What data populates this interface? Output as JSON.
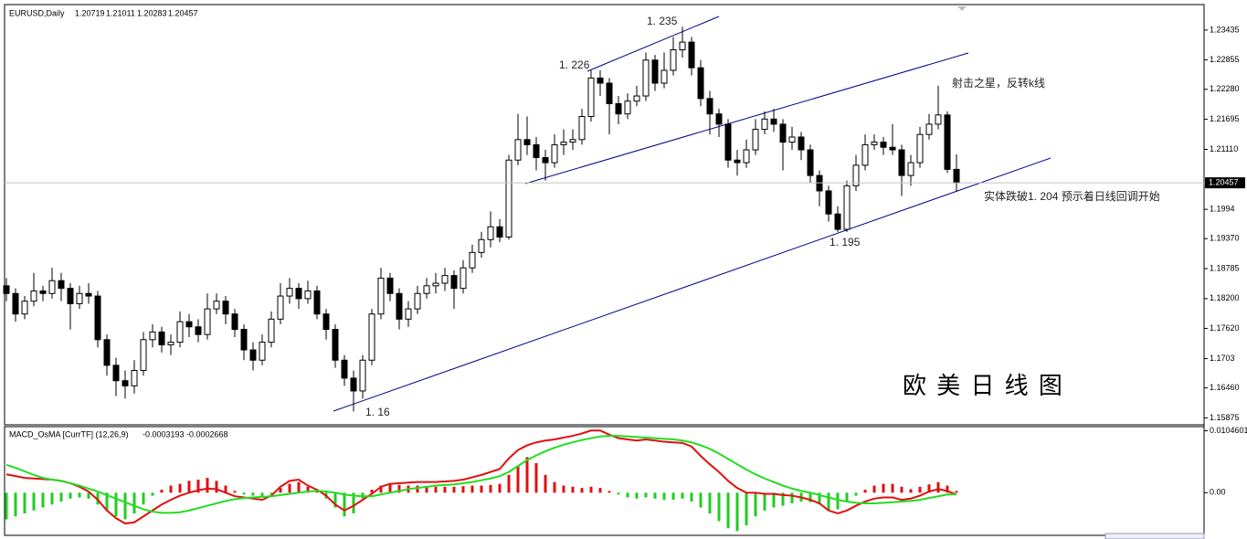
{
  "chart_data": [
    {
      "type": "candlestick",
      "symbol": "EURUSD,Daily",
      "open": [
        1.1845,
        1.183,
        1.179,
        1.1815,
        1.1835,
        1.183,
        1.1855,
        1.184,
        1.181,
        1.183,
        1.1825,
        1.174,
        1.169,
        1.166,
        1.165,
        1.168,
        1.174,
        1.1755,
        1.173,
        1.1735,
        1.1775,
        1.1765,
        1.175,
        1.18,
        1.1815,
        1.179,
        1.176,
        1.172,
        1.17,
        1.1735,
        1.178,
        1.1825,
        1.184,
        1.182,
        1.1835,
        1.179,
        1.176,
        1.17,
        1.1665,
        1.164,
        1.17,
        1.179,
        1.186,
        1.183,
        1.178,
        1.18,
        1.183,
        1.1845,
        1.185,
        1.1865,
        1.184,
        1.188,
        1.191,
        1.1935,
        1.196,
        1.194,
        1.209,
        1.213,
        1.212,
        1.2095,
        1.2085,
        1.212,
        1.2125,
        1.213,
        1.2175,
        1.225,
        1.224,
        1.22,
        1.218,
        1.2205,
        1.2215,
        1.2285,
        1.224,
        1.2265,
        1.2305,
        1.232,
        1.227,
        1.221,
        1.218,
        1.216,
        1.209,
        1.2085,
        1.211,
        1.215,
        1.217,
        1.216,
        1.2125,
        1.2135,
        1.211,
        1.206,
        1.203,
        1.1985,
        1.1955,
        1.204,
        1.208,
        1.212,
        1.2125,
        1.2115,
        1.211,
        1.206,
        1.2085,
        1.214,
        1.216,
        1.2178,
        1.20719
      ],
      "high": [
        1.186,
        1.184,
        1.1825,
        1.187,
        1.1845,
        1.188,
        1.187,
        1.185,
        1.1845,
        1.185,
        1.1835,
        1.175,
        1.1705,
        1.168,
        1.17,
        1.1755,
        1.177,
        1.1765,
        1.175,
        1.1795,
        1.179,
        1.178,
        1.183,
        1.183,
        1.1825,
        1.18,
        1.177,
        1.1735,
        1.175,
        1.1795,
        1.185,
        1.186,
        1.185,
        1.1855,
        1.1845,
        1.18,
        1.177,
        1.171,
        1.168,
        1.171,
        1.18,
        1.188,
        1.187,
        1.184,
        1.1815,
        1.1845,
        1.186,
        1.187,
        1.188,
        1.1875,
        1.1895,
        1.1925,
        1.195,
        1.199,
        1.1975,
        1.21,
        1.218,
        1.2175,
        1.2135,
        1.211,
        1.214,
        1.215,
        1.215,
        1.219,
        1.2265,
        1.2265,
        1.225,
        1.2215,
        1.222,
        1.2235,
        1.23,
        1.2295,
        1.23,
        1.233,
        1.235,
        1.233,
        1.2285,
        1.2225,
        1.219,
        1.217,
        1.211,
        1.213,
        1.217,
        1.2185,
        1.219,
        1.217,
        1.2155,
        1.2145,
        1.212,
        1.207,
        1.204,
        1.2,
        1.205,
        1.21,
        1.214,
        1.214,
        1.2135,
        1.216,
        1.212,
        1.21,
        1.2155,
        1.218,
        1.2235,
        1.2185,
        1.21011
      ],
      "low": [
        1.1815,
        1.1775,
        1.178,
        1.1805,
        1.1815,
        1.182,
        1.1815,
        1.176,
        1.18,
        1.181,
        1.1725,
        1.167,
        1.163,
        1.1625,
        1.1635,
        1.167,
        1.1725,
        1.1715,
        1.171,
        1.1725,
        1.1745,
        1.1735,
        1.174,
        1.179,
        1.177,
        1.1745,
        1.17,
        1.168,
        1.169,
        1.1725,
        1.177,
        1.181,
        1.18,
        1.181,
        1.178,
        1.174,
        1.1685,
        1.165,
        1.16,
        1.1625,
        1.169,
        1.178,
        1.1815,
        1.176,
        1.1765,
        1.179,
        1.182,
        1.183,
        1.1835,
        1.18,
        1.183,
        1.187,
        1.19,
        1.192,
        1.193,
        1.1935,
        1.208,
        1.21,
        1.207,
        1.205,
        1.2075,
        1.21,
        1.211,
        1.212,
        1.2165,
        1.2215,
        1.214,
        1.216,
        1.217,
        1.2195,
        1.2205,
        1.2225,
        1.223,
        1.2255,
        1.229,
        1.2255,
        1.2195,
        1.214,
        1.2135,
        1.2075,
        1.206,
        1.2075,
        1.21,
        1.214,
        1.2145,
        1.207,
        1.211,
        1.209,
        1.2045,
        1.2,
        1.197,
        1.195,
        1.195,
        1.203,
        1.207,
        1.211,
        1.21,
        1.21,
        1.202,
        1.204,
        1.2075,
        1.213,
        1.215,
        1.2065,
        1.20283
      ],
      "close": [
        1.183,
        1.179,
        1.1815,
        1.1835,
        1.183,
        1.1855,
        1.184,
        1.181,
        1.183,
        1.1825,
        1.174,
        1.169,
        1.166,
        1.165,
        1.168,
        1.174,
        1.1755,
        1.173,
        1.1735,
        1.1775,
        1.1765,
        1.175,
        1.18,
        1.1815,
        1.179,
        1.176,
        1.172,
        1.17,
        1.1735,
        1.178,
        1.1825,
        1.184,
        1.182,
        1.1835,
        1.179,
        1.176,
        1.17,
        1.1665,
        1.164,
        1.17,
        1.179,
        1.186,
        1.183,
        1.178,
        1.18,
        1.183,
        1.1845,
        1.185,
        1.1865,
        1.184,
        1.188,
        1.191,
        1.1935,
        1.196,
        1.194,
        1.209,
        1.213,
        1.212,
        1.2095,
        1.2085,
        1.212,
        1.2125,
        1.213,
        1.2175,
        1.225,
        1.224,
        1.22,
        1.218,
        1.2205,
        1.2215,
        1.2285,
        1.224,
        1.2265,
        1.2305,
        1.232,
        1.227,
        1.221,
        1.218,
        1.216,
        1.209,
        1.2085,
        1.211,
        1.215,
        1.217,
        1.216,
        1.2125,
        1.2135,
        1.211,
        1.206,
        1.203,
        1.1985,
        1.1955,
        1.204,
        1.208,
        1.212,
        1.2125,
        1.2115,
        1.211,
        1.206,
        1.2085,
        1.214,
        1.216,
        1.2178,
        1.20719,
        1.20457
      ],
      "up_color": "#ffffff",
      "down_color": "#000000",
      "line_color": "#000000",
      "ylim": [
        1.15758,
        1.23914
      ],
      "yticks": [
        1.23435,
        1.22855,
        {
          "value": 1.2228,
          "label": "1.22280"
        },
        1.21695,
        {
          "value": 1.2111,
          "label": "1.21110"
        },
        1.1994,
        {
          "value": 1.1937,
          "label": "1.19370"
        },
        1.18785,
        {
          "value": 1.182,
          "label": "1.18200"
        },
        {
          "value": 1.1762,
          "label": "1.17620"
        },
        1.1703,
        {
          "value": 1.1646,
          "label": "1.16460"
        },
        1.15875
      ],
      "annotations": [
        "1. 235",
        "1. 226",
        "1. 16",
        "1. 195",
        "射击之星，反转k线",
        "实体跌破1. 204  预示着日线回调开始",
        "欧 美 日 线 图"
      ]
    },
    {
      "type": "macd",
      "title": "MACD_OsMA [CurrTF] (12,26,9)",
      "series": [
        {
          "kind": "bar",
          "up_color": "#e01010",
          "down_color": "#22cc22",
          "values": [
            -0.0045,
            -0.004,
            -0.0035,
            -0.003,
            -0.0025,
            -0.002,
            -0.0015,
            -0.001,
            -0.0008,
            -0.001,
            -0.002,
            -0.003,
            -0.004,
            -0.0045,
            -0.0035,
            -0.002,
            -0.0005,
            0.0005,
            0.0012,
            0.0015,
            0.002,
            0.0022,
            0.0025,
            0.002,
            0.0012,
            0.0003,
            -0.0003,
            -0.0005,
            -0.0008,
            -0.0003,
            0.0008,
            0.0015,
            0.0018,
            0.001,
            0.0002,
            -0.001,
            -0.0025,
            -0.004,
            -0.0035,
            -0.001,
            0.0005,
            0.0012,
            0.0015,
            0.0013,
            0.0012,
            0.0012,
            0.0011,
            0.001,
            0.001,
            0.001,
            0.0011,
            0.0012,
            0.0012,
            0.0013,
            0.0015,
            0.003,
            0.0045,
            0.006,
            0.005,
            0.003,
            0.0018,
            0.0012,
            0.001,
            0.0008,
            0.001,
            0.0008,
            0.0003,
            -0.0003,
            -0.0008,
            -0.001,
            -0.0008,
            -0.001,
            -0.0012,
            -0.0012,
            -0.001,
            -0.0015,
            -0.0025,
            -0.0035,
            -0.0048,
            -0.006,
            -0.0065,
            -0.0055,
            -0.004,
            -0.003,
            -0.0025,
            -0.0022,
            -0.0018,
            -0.0015,
            -0.0016,
            -0.002,
            -0.003,
            -0.0028,
            -0.0015,
            -0.0005,
            0.0005,
            0.0012,
            0.0015,
            0.0015,
            0.001,
            0.0006,
            0.001,
            0.0014,
            0.0018,
            0.0012,
            0.0003
          ]
        },
        {
          "kind": "line",
          "color": "#e01010",
          "values": [
            0.0031,
            0.0028,
            0.0025,
            0.0024,
            0.0023,
            0.0022,
            0.002,
            0.0016,
            0.001,
            0.0002,
            -0.0012,
            -0.003,
            -0.0043,
            -0.0052,
            -0.005,
            -0.004,
            -0.003,
            -0.002,
            -0.0012,
            -0.0005,
            0.0,
            0.0004,
            0.0007,
            0.0006,
            0.0,
            -0.0006,
            -0.0008,
            -0.001,
            -0.0012,
            -0.0005,
            0.001,
            0.002,
            0.0022,
            0.0012,
            0.0005,
            -0.0005,
            -0.002,
            -0.003,
            -0.0022,
            -0.0012,
            -0.0002,
            0.001,
            0.0015,
            0.0016,
            0.0017,
            0.0018,
            0.0018,
            0.0018,
            0.0019,
            0.002,
            0.0022,
            0.0026,
            0.003,
            0.0035,
            0.004,
            0.0058,
            0.0072,
            0.008,
            0.0085,
            0.0088,
            0.009,
            0.0093,
            0.0096,
            0.01,
            0.0105,
            0.0105,
            0.0098,
            0.0092,
            0.009,
            0.0088,
            0.009,
            0.0088,
            0.0086,
            0.0085,
            0.0084,
            0.0078,
            0.0062,
            0.0048,
            0.0035,
            0.002,
            0.0008,
            0.0,
            0.0,
            -0.0002,
            -0.0002,
            -0.0004,
            -0.0005,
            -0.0008,
            -0.0012,
            -0.0018,
            -0.003,
            -0.0035,
            -0.003,
            -0.0022,
            -0.0015,
            -0.001,
            -0.0008,
            -0.0008,
            -0.0012,
            -0.001,
            -0.0005,
            0.0002,
            0.0006,
            0.0003,
            -0.0003193
          ]
        },
        {
          "kind": "line",
          "color": "#22dd22",
          "values": [
            0.0047,
            0.0042,
            0.0036,
            0.003,
            0.0025,
            0.0022,
            0.002,
            0.0016,
            0.0012,
            0.0007,
            0.0002,
            -0.0004,
            -0.001,
            -0.0016,
            -0.0022,
            -0.0028,
            -0.0032,
            -0.0034,
            -0.0034,
            -0.0033,
            -0.003,
            -0.0026,
            -0.0022,
            -0.0018,
            -0.0014,
            -0.0011,
            -0.0009,
            -0.0008,
            -0.0007,
            -0.0006,
            -0.0004,
            -0.0002,
            0.0,
            0.0002,
            0.0003,
            0.0002,
            0.0,
            -0.0003,
            -0.0005,
            -0.0006,
            -0.0006,
            -0.0003,
            0.0,
            0.0003,
            0.0006,
            0.0008,
            0.001,
            0.0012,
            0.0013,
            0.0014,
            0.0016,
            0.0018,
            0.0021,
            0.0024,
            0.0028,
            0.0035,
            0.0045,
            0.0055,
            0.0063,
            0.007,
            0.0076,
            0.0081,
            0.0085,
            0.0089,
            0.0092,
            0.0095,
            0.0096,
            0.0096,
            0.0095,
            0.0094,
            0.0093,
            0.0092,
            0.0091,
            0.009,
            0.0088,
            0.0085,
            0.008,
            0.0074,
            0.0066,
            0.0057,
            0.0048,
            0.0039,
            0.0031,
            0.0024,
            0.0018,
            0.0012,
            0.0007,
            0.0003,
            0.0,
            -0.0004,
            -0.0008,
            -0.0012,
            -0.0015,
            -0.0017,
            -0.0018,
            -0.0018,
            -0.0017,
            -0.0016,
            -0.0015,
            -0.0014,
            -0.0012,
            -0.0009,
            -0.0006,
            -0.0003,
            -0.0002668
          ]
        }
      ],
      "ylim": [
        -0.0072,
        0.011
      ],
      "yticks": [
        0.0104601,
        {
          "value": 0,
          "label": "0.00"
        }
      ]
    }
  ]
}
